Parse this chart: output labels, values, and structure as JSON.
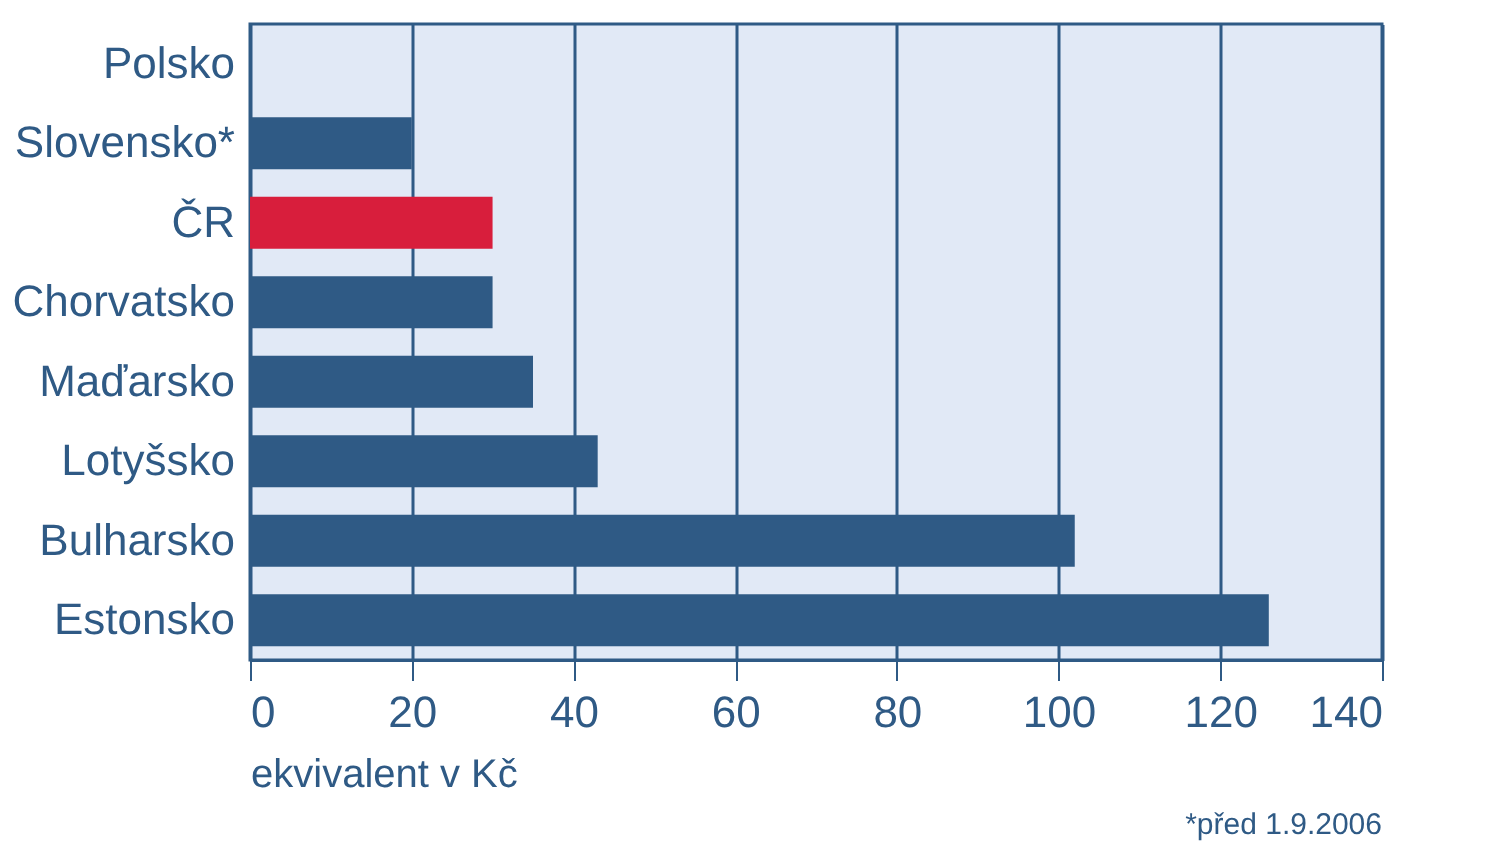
{
  "chart_data": {
    "type": "bar",
    "orientation": "horizontal",
    "xlabel": "ekvivalent v Kč",
    "categories": [
      "Polsko",
      "Slovensko*",
      "ČR",
      "Chorvatsko",
      "Maďarsko",
      "Lotyšsko",
      "Bulharsko",
      "Estonsko"
    ],
    "values": [
      0,
      20,
      30,
      30,
      35,
      43,
      102,
      126
    ],
    "colors": [
      "#2f5a85",
      "#2f5a85",
      "#d81e3c",
      "#2f5a85",
      "#2f5a85",
      "#2f5a85",
      "#2f5a85",
      "#2f5a85"
    ],
    "xlim": [
      0,
      140
    ],
    "xticks": [
      0,
      20,
      40,
      60,
      80,
      100,
      120,
      140
    ],
    "grid": "x",
    "annotations": [
      "*před 1.9.2006"
    ]
  }
}
